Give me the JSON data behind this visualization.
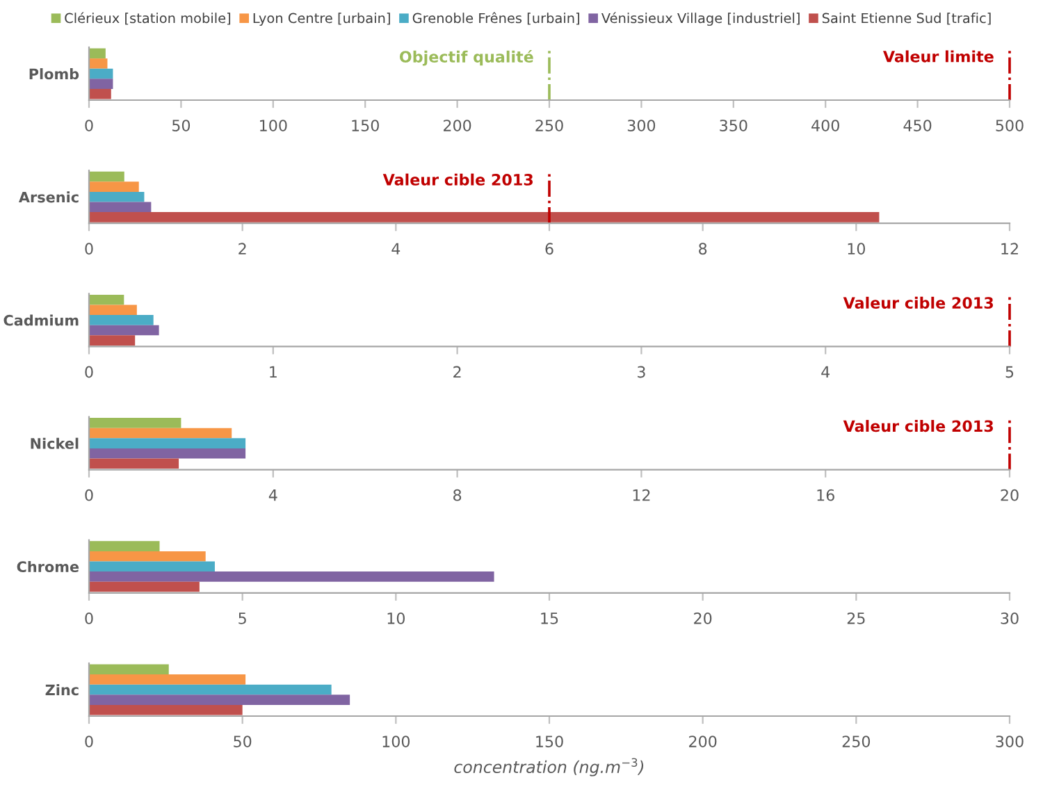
{
  "chart_data": [
    {
      "type": "bar",
      "orientation": "horizontal",
      "categories": [
        "Plomb"
      ],
      "legend": "top",
      "series": [
        {
          "name": "Clérieux [station mobile]",
          "color": "#9bbb59",
          "values": [
            9
          ]
        },
        {
          "name": "Lyon Centre [urbain]",
          "color": "#f79646",
          "values": [
            10
          ]
        },
        {
          "name": "Grenoble Frênes [urbain]",
          "color": "#4bacc6",
          "values": [
            13
          ]
        },
        {
          "name": "Vénissieux Village [industriel]",
          "color": "#8064a2",
          "values": [
            13
          ]
        },
        {
          "name": "Saint Etienne Sud [trafic]",
          "color": "#c0504d",
          "values": [
            12
          ]
        }
      ],
      "xlim": [
        0,
        500
      ],
      "xticks": [
        0,
        50,
        100,
        150,
        200,
        250,
        300,
        350,
        400,
        450,
        500
      ],
      "ref_lines": [
        {
          "axis": "x",
          "value": 250,
          "label": "Objectif qualité",
          "color": "#9bbb59",
          "line_style": "dashdot"
        },
        {
          "axis": "x",
          "value": 500,
          "label": "Valeur limite",
          "color": "#c00000",
          "line_style": "dashdot"
        }
      ]
    },
    {
      "type": "bar",
      "orientation": "horizontal",
      "categories": [
        "Arsenic"
      ],
      "series": [
        {
          "color": "#9bbb59",
          "values": [
            0.46
          ]
        },
        {
          "color": "#f79646",
          "values": [
            0.65
          ]
        },
        {
          "color": "#4bacc6",
          "values": [
            0.72
          ]
        },
        {
          "color": "#8064a2",
          "values": [
            0.81
          ]
        },
        {
          "color": "#c0504d",
          "values": [
            10.3
          ]
        }
      ],
      "xlim": [
        0,
        12
      ],
      "xticks": [
        0,
        2,
        4,
        6,
        8,
        10,
        12
      ],
      "ref_lines": [
        {
          "axis": "x",
          "value": 6,
          "label": "Valeur cible 2013",
          "color": "#c00000",
          "line_style": "dashdot"
        }
      ]
    },
    {
      "type": "bar",
      "orientation": "horizontal",
      "categories": [
        "Cadmium"
      ],
      "series": [
        {
          "color": "#9bbb59",
          "values": [
            0.19
          ]
        },
        {
          "color": "#f79646",
          "values": [
            0.26
          ]
        },
        {
          "color": "#4bacc6",
          "values": [
            0.35
          ]
        },
        {
          "color": "#8064a2",
          "values": [
            0.38
          ]
        },
        {
          "color": "#c0504d",
          "values": [
            0.25
          ]
        }
      ],
      "xlim": [
        0,
        5
      ],
      "xticks": [
        0,
        1,
        2,
        3,
        4,
        5
      ],
      "ref_lines": [
        {
          "axis": "x",
          "value": 5,
          "label": "Valeur cible 2013",
          "color": "#c00000",
          "line_style": "dashdot"
        }
      ]
    },
    {
      "type": "bar",
      "orientation": "horizontal",
      "categories": [
        "Nickel"
      ],
      "series": [
        {
          "color": "#9bbb59",
          "values": [
            2.0
          ]
        },
        {
          "color": "#f79646",
          "values": [
            3.1
          ]
        },
        {
          "color": "#4bacc6",
          "values": [
            3.4
          ]
        },
        {
          "color": "#8064a2",
          "values": [
            3.4
          ]
        },
        {
          "color": "#c0504d",
          "values": [
            1.95
          ]
        }
      ],
      "xlim": [
        0,
        20
      ],
      "xticks": [
        0,
        4,
        8,
        12,
        16,
        20
      ],
      "ref_lines": [
        {
          "axis": "x",
          "value": 20,
          "label": "Valeur cible 2013",
          "color": "#c00000",
          "line_style": "dashdot"
        }
      ]
    },
    {
      "type": "bar",
      "orientation": "horizontal",
      "categories": [
        "Chrome"
      ],
      "series": [
        {
          "color": "#9bbb59",
          "values": [
            2.3
          ]
        },
        {
          "color": "#f79646",
          "values": [
            3.8
          ]
        },
        {
          "color": "#4bacc6",
          "values": [
            4.1
          ]
        },
        {
          "color": "#8064a2",
          "values": [
            13.2
          ]
        },
        {
          "color": "#c0504d",
          "values": [
            3.6
          ]
        }
      ],
      "xlim": [
        0,
        30
      ],
      "xticks": [
        0,
        5,
        10,
        15,
        20,
        25,
        30
      ]
    },
    {
      "type": "bar",
      "orientation": "horizontal",
      "categories": [
        "Zinc"
      ],
      "xlabel": "concentration (ng.m$^{−3}$)",
      "series": [
        {
          "color": "#9bbb59",
          "values": [
            26
          ]
        },
        {
          "color": "#f79646",
          "values": [
            51
          ]
        },
        {
          "color": "#4bacc6",
          "values": [
            79
          ]
        },
        {
          "color": "#8064a2",
          "values": [
            85
          ]
        },
        {
          "color": "#c0504d",
          "values": [
            50
          ]
        }
      ],
      "xlim": [
        0,
        300
      ],
      "xticks": [
        0,
        50,
        100,
        150,
        200,
        250,
        300
      ]
    }
  ]
}
